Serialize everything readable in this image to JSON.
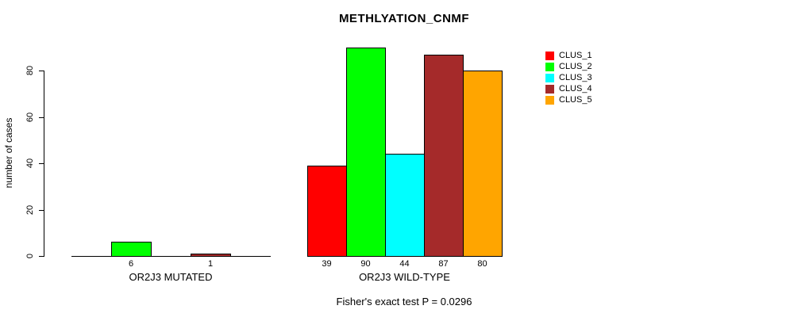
{
  "chart_data": {
    "type": "bar",
    "title": "METHLYATION_CNMF",
    "ylabel": "number of cases",
    "yticks": [
      0,
      20,
      40,
      60,
      80
    ],
    "ylim": [
      0,
      90
    ],
    "grid": false,
    "legend_position": "right",
    "legend": [
      {
        "label": "CLUS_1",
        "color": "#ff0000"
      },
      {
        "label": "CLUS_2",
        "color": "#00ff00"
      },
      {
        "label": "CLUS_3",
        "color": "#00ffff"
      },
      {
        "label": "CLUS_4",
        "color": "#a52a2a"
      },
      {
        "label": "CLUS_5",
        "color": "#ffa500"
      }
    ],
    "groups": [
      {
        "label": "OR2J3 MUTATED",
        "series": [
          "CLUS_1",
          "CLUS_2",
          "CLUS_3",
          "CLUS_4",
          "CLUS_5"
        ],
        "values": [
          0,
          6,
          0,
          1,
          0
        ],
        "value_labels": [
          "",
          "6",
          "",
          "1",
          ""
        ]
      },
      {
        "label": "OR2J3 WILD-TYPE",
        "series": [
          "CLUS_1",
          "CLUS_2",
          "CLUS_3",
          "CLUS_4",
          "CLUS_5"
        ],
        "values": [
          39,
          90,
          44,
          87,
          80
        ],
        "value_labels": [
          "39",
          "90",
          "44",
          "87",
          "80"
        ]
      }
    ],
    "footnote": "Fisher's exact test P = 0.0296"
  }
}
